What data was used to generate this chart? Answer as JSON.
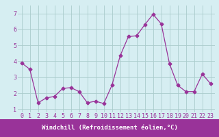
{
  "x": [
    0,
    1,
    2,
    3,
    4,
    5,
    6,
    7,
    8,
    9,
    10,
    11,
    12,
    13,
    14,
    15,
    16,
    17,
    18,
    19,
    20,
    21,
    22,
    23
  ],
  "y": [
    3.9,
    3.5,
    1.4,
    1.7,
    1.8,
    2.3,
    2.35,
    2.1,
    1.4,
    1.5,
    1.35,
    2.5,
    4.35,
    5.55,
    5.6,
    6.3,
    6.95,
    6.35,
    3.85,
    2.5,
    2.1,
    2.1,
    3.2,
    2.6
  ],
  "line_color": "#993399",
  "marker": "D",
  "marker_size": 2.5,
  "bg_color": "#d6eef2",
  "grid_color": "#aacccc",
  "xlabel": "Windchill (Refroidissement éolien,°C)",
  "xlabel_color": "#ffffff",
  "xlabel_bg": "#993399",
  "tick_color": "#993399",
  "ylabel_ticks": [
    1,
    2,
    3,
    4,
    5,
    6,
    7
  ],
  "xlim": [
    -0.5,
    23.5
  ],
  "ylim": [
    0.8,
    7.5
  ],
  "xlabel_fontsize": 6.5,
  "tick_fontsize": 6.0
}
